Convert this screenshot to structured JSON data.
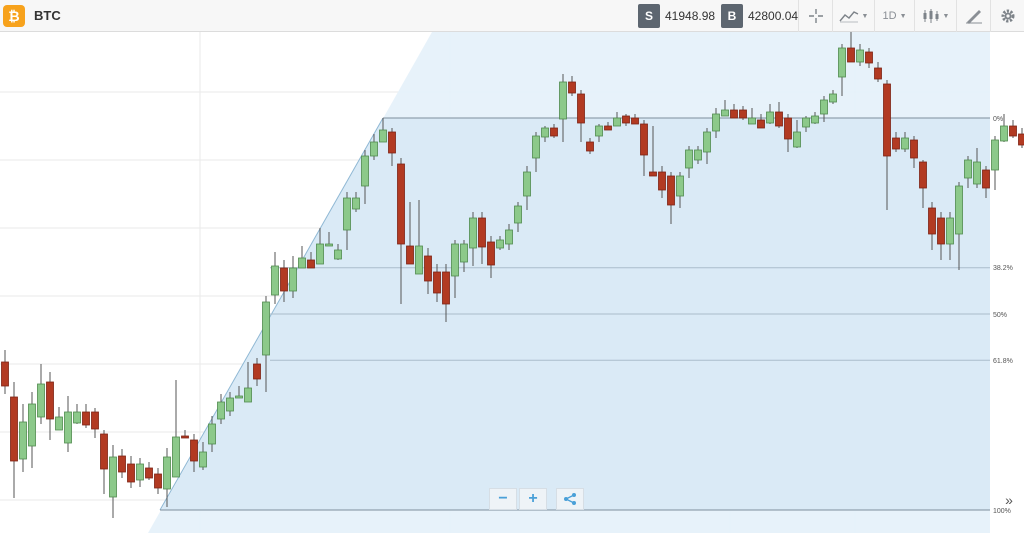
{
  "header": {
    "symbol": "BTC",
    "logo_icon": "bitcoin-icon",
    "sell": {
      "tag": "S",
      "price": "41948.98"
    },
    "buy": {
      "tag": "B",
      "price": "42800.04"
    },
    "interval": "1D",
    "tools": [
      "crosshair-icon",
      "indicators-icon",
      "interval-selector",
      "candlestick-icon",
      "drawing-tools-icon",
      "gear-icon"
    ]
  },
  "fibonacci": {
    "levels": [
      {
        "label": "0%",
        "value": 0
      },
      {
        "label": "38.2%",
        "value": 0.382
      },
      {
        "label": "50%",
        "value": 0.5
      },
      {
        "label": "61.8%",
        "value": 0.618
      },
      {
        "label": "100%",
        "value": 1
      }
    ]
  },
  "controls": {
    "zoom_out": "−",
    "zoom_in": "+",
    "share_icon": "share-icon",
    "scroll_end": "»"
  },
  "colors": {
    "up": "#8cc98a",
    "down": "#b23a22",
    "fib_fill": "#cfe4f2",
    "accent": "#4aa0d8"
  }
}
